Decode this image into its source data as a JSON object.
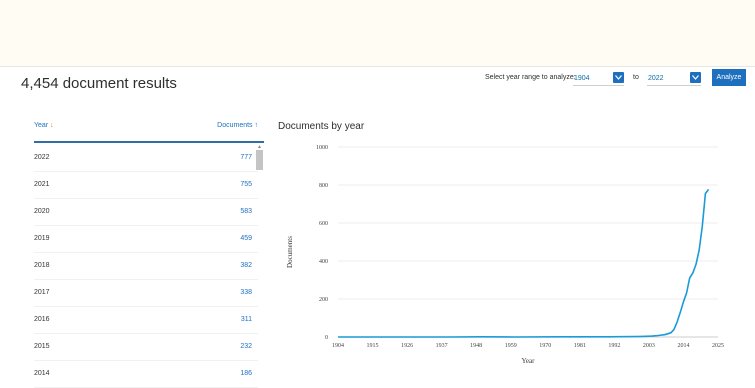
{
  "results": {
    "title": "4,454 document results"
  },
  "range": {
    "label": "Select year range to analyze:",
    "from": "1904",
    "to_label": "to",
    "to": "2022",
    "analyze_label": "Analyze"
  },
  "table": {
    "year_header": "Year",
    "docs_header": "Documents",
    "rows": [
      {
        "year": "2022",
        "count": "777"
      },
      {
        "year": "2021",
        "count": "755"
      },
      {
        "year": "2020",
        "count": "583"
      },
      {
        "year": "2019",
        "count": "459"
      },
      {
        "year": "2018",
        "count": "382"
      },
      {
        "year": "2017",
        "count": "338"
      },
      {
        "year": "2016",
        "count": "311"
      },
      {
        "year": "2015",
        "count": "232"
      },
      {
        "year": "2014",
        "count": "186"
      }
    ]
  },
  "colors": {
    "accent": "#1e6fbe",
    "line": "#1a9ad6"
  },
  "chart_data": {
    "type": "line",
    "title": "Documents by year",
    "xlabel": "Year",
    "ylabel": "Documents",
    "ylim": [
      0,
      1000
    ],
    "yticks": [
      0,
      200,
      400,
      600,
      800,
      1000
    ],
    "xlim": [
      1904,
      2025
    ],
    "xticks": [
      1904,
      1915,
      1926,
      1937,
      1948,
      1959,
      1970,
      1981,
      1992,
      2003,
      2014,
      2025
    ],
    "grid": "horizontal",
    "series": [
      {
        "x": [
          1904,
          1920,
          1940,
          1950,
          1960,
          1975,
          1990,
          1998,
          2001,
          2004,
          2006,
          2008,
          2010,
          2011,
          2012,
          2013,
          2014,
          2015,
          2016,
          2017,
          2018,
          2019,
          2020,
          2021,
          2022
        ],
        "values": [
          0,
          0,
          0,
          1,
          0,
          1,
          1,
          2,
          3,
          5,
          8,
          12,
          22,
          40,
          80,
          130,
          186,
          232,
          311,
          338,
          382,
          459,
          583,
          755,
          777
        ]
      }
    ]
  }
}
